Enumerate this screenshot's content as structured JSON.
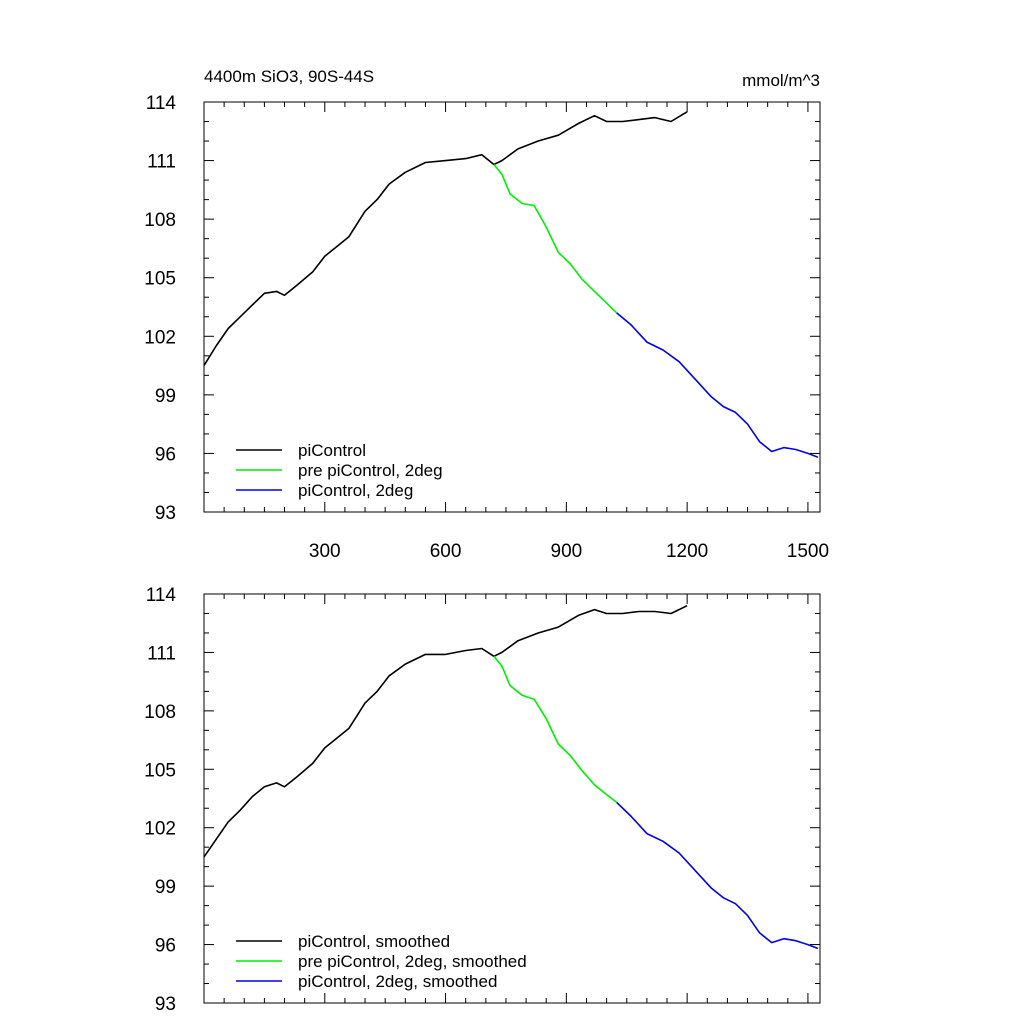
{
  "chart_data": [
    {
      "type": "line",
      "title_left": "4400m SiO3, 90S-44S",
      "title_right": "mmol/m^3",
      "xlim": [
        0,
        1530
      ],
      "ylim": [
        93,
        114
      ],
      "x_ticks": [
        300,
        600,
        900,
        1200,
        1500
      ],
      "x_tick_labels": [
        "300",
        "600",
        "900",
        "1200",
        "1500"
      ],
      "y_ticks": [
        93,
        96,
        99,
        102,
        105,
        108,
        111,
        114
      ],
      "y_tick_labels": [
        "93",
        "96",
        "99",
        "102",
        "105",
        "108",
        "111",
        "114"
      ],
      "legend_position": "bottom-left",
      "series": [
        {
          "name": "piControl",
          "color": "#000000",
          "points": [
            [
              0,
              100.5
            ],
            [
              30,
              101.5
            ],
            [
              60,
              102.4
            ],
            [
              90,
              103.0
            ],
            [
              120,
              103.6
            ],
            [
              150,
              104.2
            ],
            [
              180,
              104.3
            ],
            [
              200,
              104.1
            ],
            [
              230,
              104.6
            ],
            [
              270,
              105.3
            ],
            [
              300,
              106.1
            ],
            [
              330,
              106.6
            ],
            [
              360,
              107.1
            ],
            [
              400,
              108.4
            ],
            [
              430,
              109.0
            ],
            [
              460,
              109.8
            ],
            [
              500,
              110.4
            ],
            [
              550,
              110.9
            ],
            [
              600,
              111.0
            ],
            [
              650,
              111.1
            ],
            [
              690,
              111.3
            ],
            [
              720,
              110.8
            ],
            [
              740,
              111.0
            ],
            [
              780,
              111.6
            ],
            [
              830,
              112.0
            ],
            [
              880,
              112.3
            ],
            [
              930,
              112.9
            ],
            [
              970,
              113.3
            ],
            [
              1000,
              113.0
            ],
            [
              1040,
              113.0
            ],
            [
              1080,
              113.1
            ],
            [
              1120,
              113.2
            ],
            [
              1160,
              113.0
            ],
            [
              1200,
              113.5
            ]
          ]
        },
        {
          "name": "pre piControl, 2deg",
          "color": "#00ee00",
          "points": [
            [
              720,
              110.8
            ],
            [
              740,
              110.3
            ],
            [
              760,
              109.3
            ],
            [
              790,
              108.8
            ],
            [
              820,
              108.7
            ],
            [
              850,
              107.6
            ],
            [
              880,
              106.3
            ],
            [
              910,
              105.7
            ],
            [
              940,
              104.9
            ],
            [
              970,
              104.3
            ],
            [
              1000,
              103.7
            ],
            [
              1025,
              103.2
            ]
          ]
        },
        {
          "name": "piControl, 2deg",
          "color": "#0000ee",
          "points": [
            [
              1025,
              103.2
            ],
            [
              1060,
              102.6
            ],
            [
              1100,
              101.7
            ],
            [
              1140,
              101.3
            ],
            [
              1180,
              100.7
            ],
            [
              1220,
              99.8
            ],
            [
              1260,
              98.9
            ],
            [
              1290,
              98.4
            ],
            [
              1320,
              98.1
            ],
            [
              1350,
              97.5
            ],
            [
              1380,
              96.6
            ],
            [
              1410,
              96.1
            ],
            [
              1440,
              96.3
            ],
            [
              1470,
              96.2
            ],
            [
              1500,
              96.0
            ],
            [
              1525,
              95.8
            ]
          ]
        }
      ]
    },
    {
      "type": "line",
      "xlim": [
        0,
        1530
      ],
      "ylim": [
        93,
        114
      ],
      "x_ticks": [
        300,
        600,
        900,
        1200,
        1500
      ],
      "y_ticks": [
        93,
        96,
        99,
        102,
        105,
        108,
        111,
        114
      ],
      "y_tick_labels": [
        "93",
        "96",
        "99",
        "102",
        "105",
        "108",
        "111",
        "114"
      ],
      "legend_position": "bottom-left",
      "series": [
        {
          "name": "piControl, smoothed",
          "color": "#000000",
          "points": [
            [
              0,
              100.5
            ],
            [
              30,
              101.4
            ],
            [
              60,
              102.3
            ],
            [
              90,
              102.9
            ],
            [
              120,
              103.6
            ],
            [
              150,
              104.1
            ],
            [
              180,
              104.3
            ],
            [
              200,
              104.1
            ],
            [
              230,
              104.6
            ],
            [
              270,
              105.3
            ],
            [
              300,
              106.1
            ],
            [
              330,
              106.6
            ],
            [
              360,
              107.1
            ],
            [
              400,
              108.4
            ],
            [
              430,
              109.0
            ],
            [
              460,
              109.8
            ],
            [
              500,
              110.4
            ],
            [
              550,
              110.9
            ],
            [
              600,
              110.9
            ],
            [
              650,
              111.1
            ],
            [
              690,
              111.2
            ],
            [
              720,
              110.8
            ],
            [
              740,
              111.0
            ],
            [
              780,
              111.6
            ],
            [
              830,
              112.0
            ],
            [
              880,
              112.3
            ],
            [
              930,
              112.9
            ],
            [
              970,
              113.2
            ],
            [
              1000,
              113.0
            ],
            [
              1040,
              113.0
            ],
            [
              1080,
              113.1
            ],
            [
              1120,
              113.1
            ],
            [
              1160,
              113.0
            ],
            [
              1200,
              113.4
            ]
          ]
        },
        {
          "name": "pre piControl, 2deg, smoothed",
          "color": "#00ee00",
          "points": [
            [
              720,
              110.8
            ],
            [
              740,
              110.3
            ],
            [
              760,
              109.3
            ],
            [
              790,
              108.8
            ],
            [
              820,
              108.6
            ],
            [
              850,
              107.6
            ],
            [
              880,
              106.3
            ],
            [
              910,
              105.7
            ],
            [
              940,
              104.9
            ],
            [
              970,
              104.2
            ],
            [
              1000,
              103.7
            ],
            [
              1025,
              103.3
            ]
          ]
        },
        {
          "name": "piControl, 2deg, smoothed",
          "color": "#0000ee",
          "points": [
            [
              1025,
              103.3
            ],
            [
              1060,
              102.6
            ],
            [
              1100,
              101.7
            ],
            [
              1140,
              101.3
            ],
            [
              1180,
              100.7
            ],
            [
              1220,
              99.8
            ],
            [
              1260,
              98.9
            ],
            [
              1290,
              98.4
            ],
            [
              1320,
              98.1
            ],
            [
              1350,
              97.5
            ],
            [
              1380,
              96.6
            ],
            [
              1410,
              96.1
            ],
            [
              1440,
              96.3
            ],
            [
              1470,
              96.2
            ],
            [
              1500,
              96.0
            ],
            [
              1525,
              95.8
            ]
          ]
        }
      ]
    }
  ]
}
